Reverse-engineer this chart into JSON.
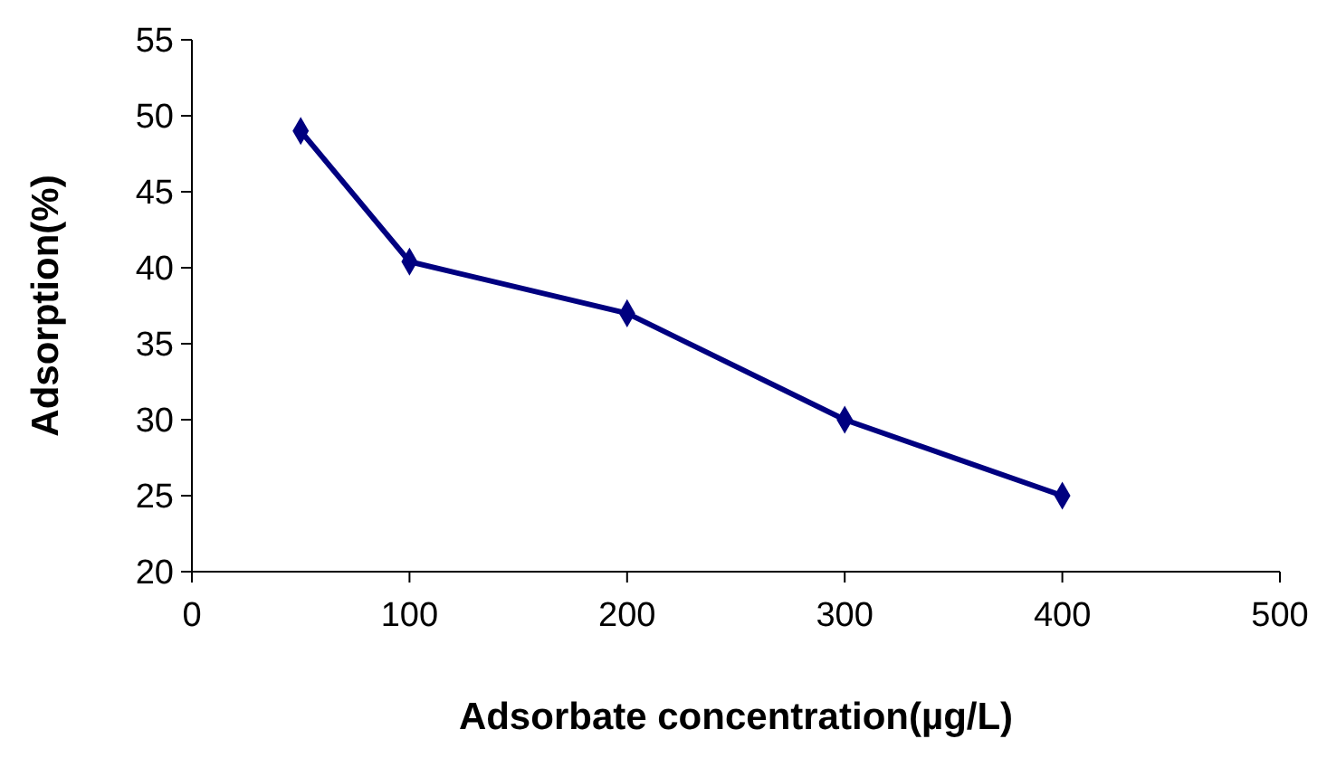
{
  "chart_data": {
    "type": "line",
    "xlabel": "Adsorbate concentration(µg/L)",
    "ylabel": "Adsorption(%)",
    "x": [
      50,
      100,
      200,
      300,
      400
    ],
    "series": [
      {
        "color": "#000080",
        "values": [
          49,
          40.4,
          37,
          30,
          25
        ]
      }
    ],
    "xlim": [
      0,
      500
    ],
    "xticks": [
      0,
      100,
      200,
      300,
      400,
      500
    ],
    "ylim": [
      20,
      55
    ],
    "yticks": [
      20,
      25,
      30,
      35,
      40,
      45,
      50,
      55
    ],
    "grid": false,
    "marker": "diamond",
    "line_style": "solid"
  }
}
